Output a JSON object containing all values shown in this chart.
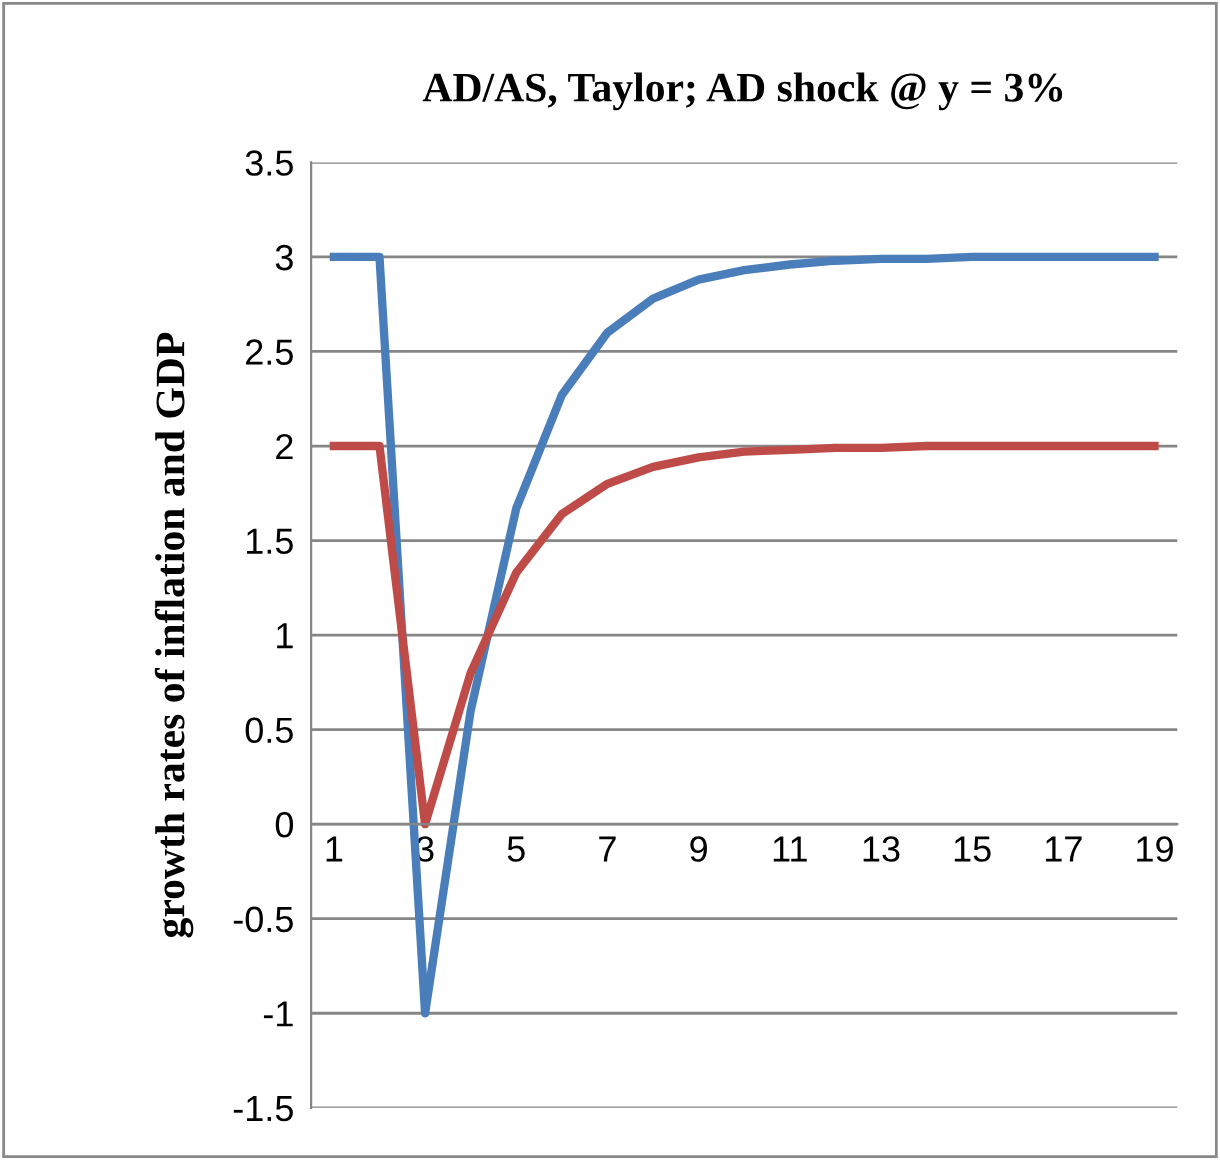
{
  "chart_data": {
    "type": "line",
    "title": "AD/AS, Taylor; AD shock @ y = 3%",
    "ylabel": "growth rates of inflation and GDP",
    "categories": [
      "1",
      null,
      "3",
      null,
      "5",
      null,
      "7",
      null,
      "9",
      null,
      "11",
      null,
      "13",
      null,
      "15",
      null,
      "17",
      null,
      "19"
    ],
    "series": [
      {
        "color": "#4a7ebb",
        "values": [
          3,
          3,
          -1,
          0.6,
          1.67,
          2.27,
          2.6,
          2.78,
          2.88,
          2.93,
          2.96,
          2.98,
          2.99,
          2.99,
          3,
          3,
          3,
          3,
          3
        ]
      },
      {
        "color": "#be4b48",
        "values": [
          2,
          2,
          0,
          0.8,
          1.33,
          1.64,
          1.8,
          1.89,
          1.94,
          1.97,
          1.98,
          1.99,
          1.99,
          2,
          2,
          2,
          2,
          2,
          2
        ]
      }
    ],
    "ylim": [
      -1.5,
      3.5
    ],
    "yticks": [
      -1.5,
      -1,
      -0.5,
      0,
      0.5,
      1,
      1.5,
      2,
      2.5,
      3,
      3.5
    ],
    "grid": "y",
    "marker": "none",
    "line_style": "solid"
  }
}
